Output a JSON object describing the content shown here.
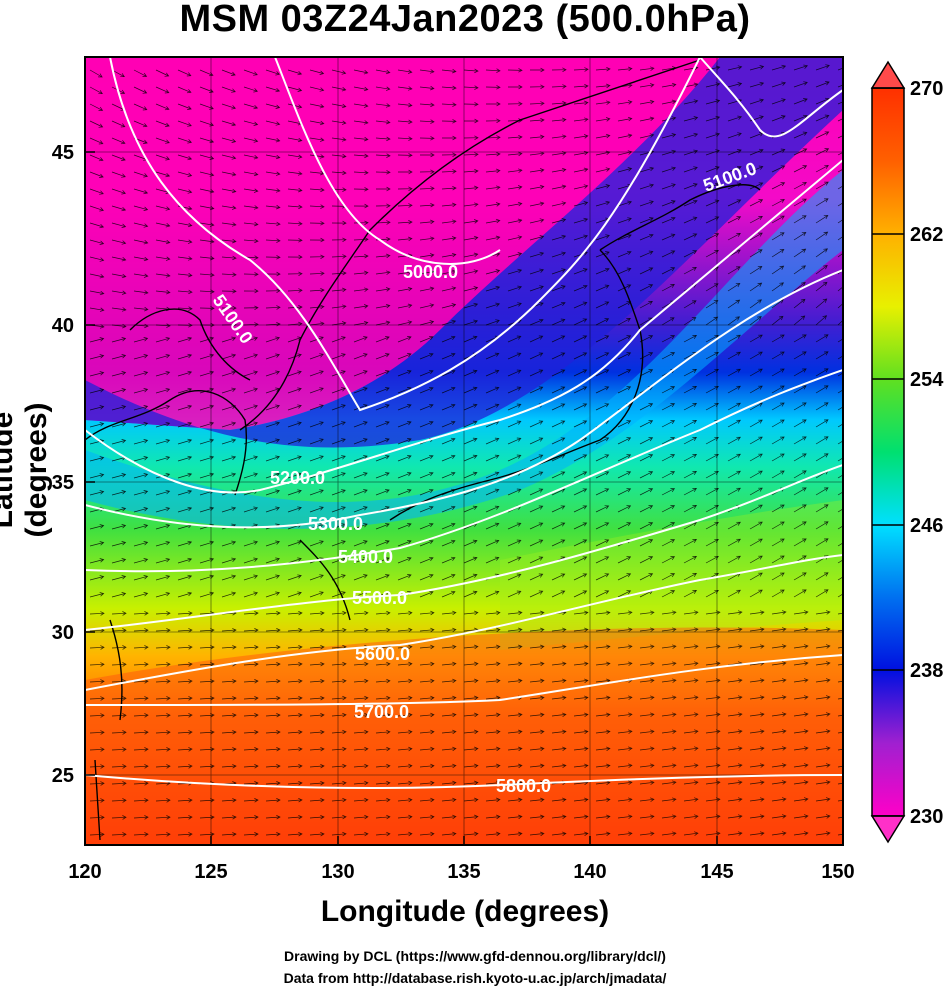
{
  "title": "MSM 03Z24Jan2023 (500.0hPa)",
  "xaxis": {
    "label": "Longitude (degrees)",
    "range": [
      120,
      150
    ],
    "ticks": [
      "120",
      "125",
      "130",
      "135",
      "140",
      "145",
      "150"
    ]
  },
  "yaxis": {
    "label": "Latitude  (degrees)",
    "range": [
      22.4,
      47.6
    ],
    "ticks": [
      "25",
      "30",
      "35",
      "40",
      "45"
    ]
  },
  "colorbar": {
    "ticks": [
      "230",
      "238",
      "246",
      "254",
      "262",
      "270"
    ],
    "range": [
      230,
      270
    ]
  },
  "contours": [
    "5000.0",
    "5100.0",
    "5100.0",
    "5200.0",
    "5300.0",
    "5400.0",
    "5500.0",
    "5600.0",
    "5700.0",
    "5800.0"
  ],
  "credits": {
    "line1": "Drawing by DCL (https://www.gfd-dennou.org/library/dcl/)",
    "line2": "Data from http://database.rish.kyoto-u.ac.jp/arch/jmadata/"
  }
}
